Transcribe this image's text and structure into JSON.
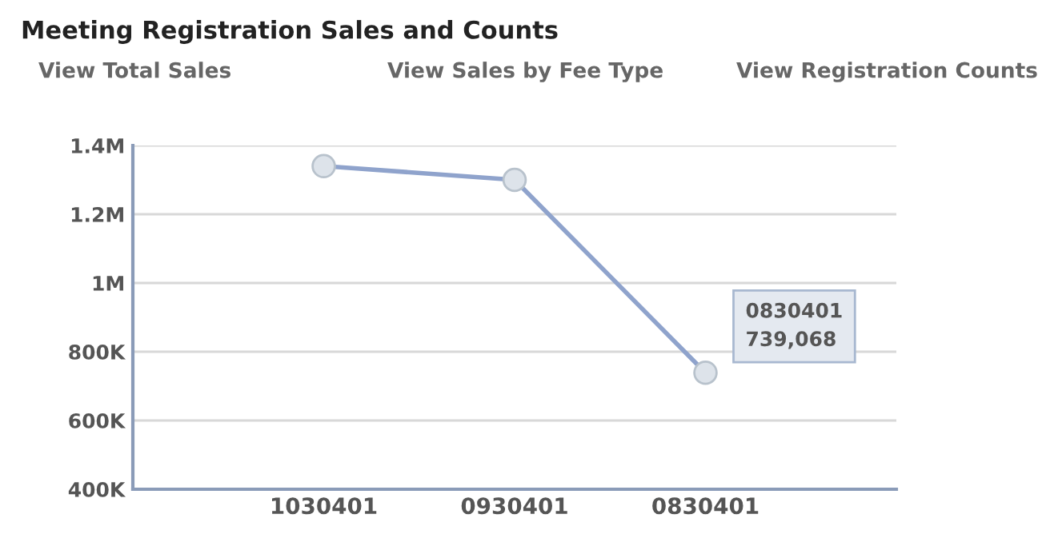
{
  "chart_data": {
    "type": "line",
    "title": "Meeting Registration Sales and Counts",
    "annotations": [
      "View Total Sales",
      "View Sales by Fee Type",
      "View Registration Counts",
      {
        "text": "0830401\n739,068",
        "x": "0830401",
        "y": 739068
      }
    ],
    "categories": [
      "1030401",
      "0930401",
      "0830401"
    ],
    "series": [
      {
        "color": "#8fa3cc",
        "values": [
          1340000,
          1300000,
          739068
        ]
      }
    ],
    "ylim": [
      400000,
      1400000
    ],
    "yticks": [
      {
        "value": 400000,
        "label": "400K"
      },
      {
        "value": 600000,
        "label": "600K"
      },
      {
        "value": 800000,
        "label": "800K"
      },
      {
        "value": 1000000,
        "label": "1M"
      },
      {
        "value": 1200000,
        "label": "1.2M"
      },
      {
        "value": 1400000,
        "label": "1.4M"
      }
    ],
    "grid": "y",
    "marker": "circle",
    "line_style": "solid",
    "legend": false
  }
}
